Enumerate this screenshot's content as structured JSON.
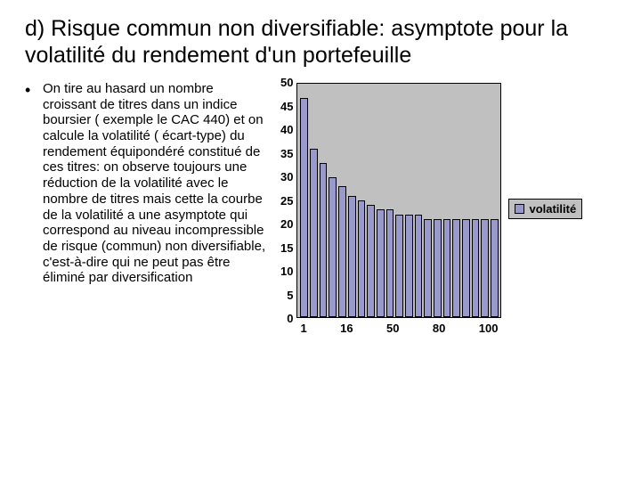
{
  "title": "d) Risque commun non diversifiable: asymptote pour la volatilité du rendement d'un portefeuille",
  "bullet": {
    "marker": "•",
    "text": "On tire au hasard un nombre croissant de titres dans un indice boursier ( exemple le CAC 440)  et on calcule la volatilité ( écart-type) du rendement équipondéré constitué de ces titres: on observe toujours une réduction de la volatilité avec le nombre de titres mais cette la courbe de la volatilité a une asymptote qui correspond au niveau incompressible de risque (commun) non diversifiable, c'est-à-dire qui ne peut pas être éliminé par diversification"
  },
  "chart": {
    "type": "bar",
    "ylim": [
      0,
      50
    ],
    "ytick_step": 5,
    "y_ticks": [
      "50",
      "45",
      "40",
      "35",
      "30",
      "25",
      "20",
      "15",
      "10",
      "5",
      "0"
    ],
    "x_labels": [
      "1",
      "16",
      "50",
      "80",
      "100"
    ],
    "values": [
      47,
      36,
      33,
      30,
      28,
      26,
      25,
      24,
      23,
      23,
      22,
      22,
      22,
      21,
      21,
      21,
      21,
      21,
      21,
      21,
      21
    ],
    "bar_fill": "#9999cc",
    "bar_border": "#000000",
    "plot_bg": "#c0c0c0",
    "legend_label": "volatilité",
    "legend_swatch": "#9999cc",
    "label_fontsize": 13,
    "label_fontweight": 700
  }
}
